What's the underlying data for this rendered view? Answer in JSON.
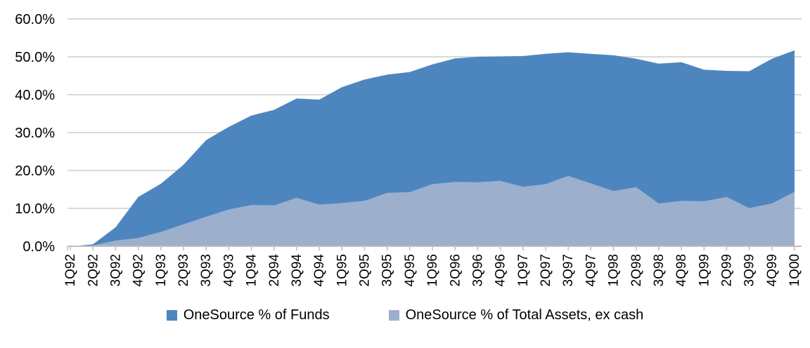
{
  "chart_data": {
    "type": "area",
    "title": "",
    "xlabel": "",
    "ylabel": "",
    "ylim": [
      0,
      60
    ],
    "grid": "horizontal",
    "legend_position": "bottom",
    "x_tick_labels": [
      "1Q92",
      "2Q92",
      "3Q92",
      "4Q92",
      "1Q93",
      "2Q93",
      "3Q93",
      "4Q93",
      "1Q94",
      "2Q94",
      "3Q94",
      "4Q94",
      "1Q95",
      "2Q95",
      "3Q95",
      "4Q95",
      "1Q96",
      "2Q96",
      "3Q96",
      "4Q96",
      "1Q97",
      "2Q97",
      "3Q97",
      "4Q97",
      "1Q98",
      "2Q98",
      "3Q98",
      "4Q98",
      "1Q99",
      "2Q99",
      "3Q99",
      "4Q99",
      "1Q00"
    ],
    "y_ticks": [
      {
        "value": 60,
        "label": "60.0%"
      },
      {
        "value": 50,
        "label": "50.0%"
      },
      {
        "value": 40,
        "label": "40.0%"
      },
      {
        "value": 30,
        "label": "30.0%"
      },
      {
        "value": 20,
        "label": "20.0%"
      },
      {
        "value": 10,
        "label": "10.0%"
      },
      {
        "value": 0,
        "label": "0.0%"
      }
    ],
    "series": [
      {
        "name": "OneSource % of Funds",
        "color": "#4D86BF",
        "values": [
          0.0,
          0.5,
          5.0,
          13.0,
          16.5,
          21.5,
          28.0,
          31.5,
          34.5,
          36.0,
          39.0,
          38.7,
          42.0,
          44.0,
          45.3,
          46.0,
          48.0,
          49.6,
          50.0,
          50.1,
          50.2,
          50.8,
          51.2,
          50.8,
          50.4,
          49.5,
          48.2,
          48.6,
          46.6,
          46.3,
          46.2,
          49.5,
          51.7
        ]
      },
      {
        "name": "OneSource % of Total Assets, ex cash",
        "color": "#9CAFCD",
        "values": [
          0.0,
          0.2,
          1.5,
          2.2,
          3.8,
          5.8,
          7.8,
          9.7,
          10.9,
          10.8,
          12.8,
          11.0,
          11.4,
          12.0,
          14.1,
          14.3,
          16.4,
          17.0,
          16.9,
          17.3,
          15.7,
          16.4,
          18.6,
          16.6,
          14.6,
          15.6,
          11.3,
          12.0,
          11.9,
          13.0,
          10.1,
          11.3,
          14.4
        ]
      }
    ]
  },
  "theme": {
    "background": "#FFFFFF",
    "gridline": "#D9D9D9",
    "axis": "#BFBFBF",
    "text": "#000000"
  }
}
